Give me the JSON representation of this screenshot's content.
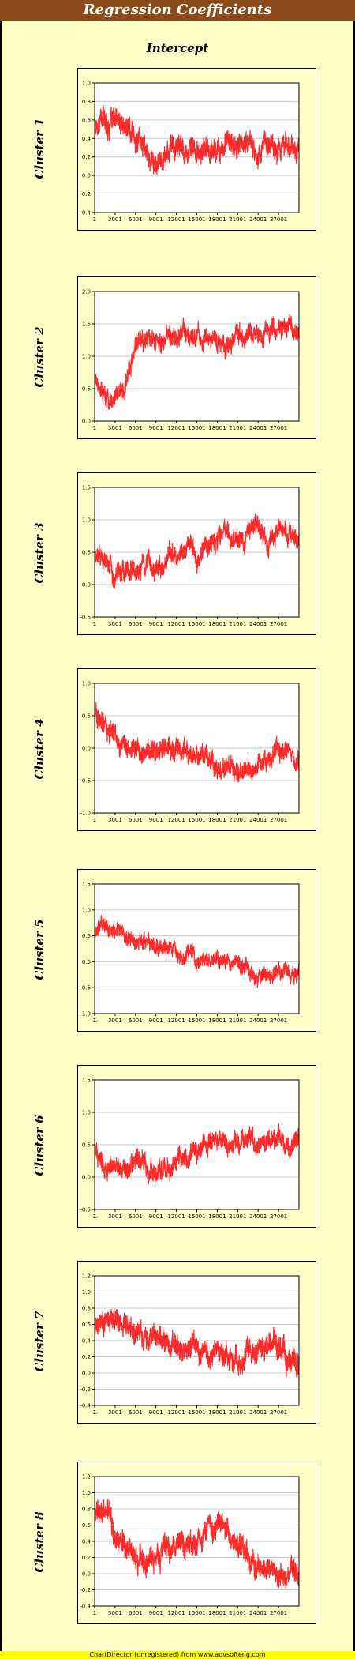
{
  "header": {
    "title": "Regression Coefficients"
  },
  "subtitle": "Intercept",
  "footer": "ChartDirector (unregistered) from www.advsofteng.com",
  "colors": {
    "line": "#ff2a2a",
    "background": "#ffffc8",
    "title_bar": "#8a4a1a",
    "footer_bar": "#ffff00"
  },
  "chart_data": [
    {
      "type": "line",
      "title": "Cluster 1",
      "x_range": [
        1,
        30000
      ],
      "x_ticks": [
        "1",
        "3001",
        "6001",
        "9001",
        "12001",
        "15001",
        "18001",
        "21001",
        "24001",
        "27001"
      ],
      "ylim": [
        -0.4,
        1.0
      ],
      "y_ticks": [
        "-0.4",
        "-0.2",
        "0.0",
        "0.2",
        "0.4",
        "0.6",
        "0.8",
        "1.0"
      ],
      "grid": true,
      "series": [
        {
          "color": "#ff2a2a",
          "band": 0.12,
          "x": [
            1,
            1000,
            2000,
            3001,
            4500,
            6001,
            7500,
            9001,
            10500,
            12001,
            13500,
            15001,
            16500,
            18001,
            19500,
            21001,
            22500,
            24001,
            25500,
            27001,
            28500,
            30000
          ],
          "y": [
            0.55,
            0.65,
            0.55,
            0.58,
            0.5,
            0.42,
            0.3,
            0.12,
            0.25,
            0.3,
            0.28,
            0.22,
            0.3,
            0.28,
            0.35,
            0.3,
            0.38,
            0.25,
            0.35,
            0.32,
            0.35,
            0.3
          ]
        }
      ]
    },
    {
      "type": "line",
      "title": "Cluster 2",
      "x_range": [
        1,
        30000
      ],
      "x_ticks": [
        "1",
        "3001",
        "6001",
        "9001",
        "12001",
        "15001",
        "18001",
        "21001",
        "24001",
        "27001"
      ],
      "ylim": [
        0.0,
        2.0
      ],
      "y_ticks": [
        "0.0",
        "0.5",
        "1.0",
        "1.5",
        "2.0"
      ],
      "grid": true,
      "series": [
        {
          "color": "#ff2a2a",
          "band": 0.15,
          "x": [
            1,
            1000,
            2000,
            3001,
            4500,
            6001,
            7500,
            9001,
            10500,
            12001,
            13500,
            15001,
            16500,
            18001,
            19500,
            21001,
            22500,
            24001,
            25500,
            27001,
            28500,
            30000
          ],
          "y": [
            0.7,
            0.5,
            0.3,
            0.3,
            0.65,
            1.1,
            1.3,
            1.3,
            1.25,
            1.3,
            1.35,
            1.3,
            1.3,
            1.2,
            1.15,
            1.3,
            1.35,
            1.4,
            1.45,
            1.4,
            1.45,
            1.4
          ]
        }
      ]
    },
    {
      "type": "line",
      "title": "Cluster 3",
      "x_range": [
        1,
        30000
      ],
      "x_ticks": [
        "1",
        "3001",
        "6001",
        "9001",
        "12001",
        "15001",
        "18001",
        "21001",
        "24001",
        "27001"
      ],
      "ylim": [
        -0.5,
        1.5
      ],
      "y_ticks": [
        "-0.5",
        "0.0",
        "0.5",
        "1.0",
        "1.5"
      ],
      "grid": true,
      "series": [
        {
          "color": "#ff2a2a",
          "band": 0.15,
          "x": [
            1,
            1000,
            2000,
            3001,
            4500,
            6001,
            7500,
            9001,
            10500,
            12001,
            13500,
            15001,
            16500,
            18001,
            19500,
            21001,
            22500,
            24001,
            25500,
            27001,
            28500,
            30000
          ],
          "y": [
            0.4,
            0.45,
            0.3,
            0.15,
            0.15,
            0.2,
            0.3,
            0.25,
            0.4,
            0.5,
            0.55,
            0.4,
            0.6,
            0.75,
            0.8,
            0.65,
            0.8,
            1.0,
            0.65,
            0.85,
            0.8,
            0.75
          ]
        }
      ]
    },
    {
      "type": "line",
      "title": "Cluster 4",
      "x_range": [
        1,
        30000
      ],
      "x_ticks": [
        "1",
        "3001",
        "6001",
        "9001",
        "12001",
        "15001",
        "18001",
        "21001",
        "24001",
        "27001"
      ],
      "ylim": [
        -1.0,
        1.0
      ],
      "y_ticks": [
        "-1.0",
        "-0.5",
        "0.0",
        "0.5",
        "1.0"
      ],
      "grid": true,
      "series": [
        {
          "color": "#ff2a2a",
          "band": 0.15,
          "x": [
            1,
            1000,
            2000,
            3001,
            4500,
            6001,
            7500,
            9001,
            10500,
            12001,
            13500,
            15001,
            16500,
            18001,
            19500,
            21001,
            22500,
            24001,
            25500,
            27001,
            28500,
            30000
          ],
          "y": [
            0.55,
            0.35,
            0.25,
            0.2,
            0.1,
            0.05,
            0.0,
            0.0,
            0.0,
            -0.05,
            0.0,
            -0.1,
            -0.2,
            -0.25,
            -0.3,
            -0.4,
            -0.3,
            -0.25,
            -0.1,
            -0.1,
            -0.05,
            -0.2
          ]
        }
      ]
    },
    {
      "type": "line",
      "title": "Cluster 5",
      "x_range": [
        1,
        30000
      ],
      "x_ticks": [
        "1",
        "3001",
        "6001",
        "9001",
        "12001",
        "15001",
        "18001",
        "21001",
        "24001",
        "27001"
      ],
      "ylim": [
        -1.0,
        1.5
      ],
      "y_ticks": [
        "-1.0",
        "-0.5",
        "0.0",
        "0.5",
        "1.0",
        "1.5"
      ],
      "grid": true,
      "series": [
        {
          "color": "#ff2a2a",
          "band": 0.15,
          "x": [
            1,
            1000,
            2000,
            3001,
            4500,
            6001,
            7500,
            9001,
            10500,
            12001,
            13500,
            15001,
            16500,
            18001,
            19500,
            21001,
            22500,
            24001,
            25500,
            27001,
            28500,
            30000
          ],
          "y": [
            0.6,
            0.8,
            0.7,
            0.65,
            0.55,
            0.4,
            0.35,
            0.25,
            0.25,
            0.2,
            0.15,
            0.05,
            0.0,
            0.05,
            0.0,
            -0.05,
            -0.15,
            -0.35,
            -0.2,
            -0.25,
            -0.2,
            -0.15
          ]
        }
      ]
    },
    {
      "type": "line",
      "title": "Cluster 6",
      "x_range": [
        1,
        30000
      ],
      "x_ticks": [
        "1",
        "3001",
        "6001",
        "9001",
        "12001",
        "15001",
        "18001",
        "21001",
        "24001",
        "27001"
      ],
      "ylim": [
        -0.5,
        1.5
      ],
      "y_ticks": [
        "-0.5",
        "0.0",
        "0.5",
        "1.0",
        "1.5"
      ],
      "grid": true,
      "series": [
        {
          "color": "#ff2a2a",
          "band": 0.15,
          "x": [
            1,
            1000,
            2000,
            3001,
            4500,
            6001,
            7500,
            9001,
            10500,
            12001,
            13500,
            15001,
            16500,
            18001,
            19500,
            21001,
            22500,
            24001,
            25500,
            27001,
            28500,
            30000
          ],
          "y": [
            0.4,
            0.25,
            0.1,
            0.15,
            0.2,
            0.3,
            0.2,
            0.05,
            0.15,
            0.25,
            0.35,
            0.3,
            0.5,
            0.55,
            0.45,
            0.55,
            0.6,
            0.5,
            0.55,
            0.6,
            0.5,
            0.55
          ]
        }
      ]
    },
    {
      "type": "line",
      "title": "Cluster 7",
      "x_range": [
        1,
        30000
      ],
      "x_ticks": [
        "1",
        "3001",
        "6001",
        "9001",
        "12001",
        "15001",
        "18001",
        "21001",
        "24001",
        "27001"
      ],
      "ylim": [
        -0.4,
        1.2
      ],
      "y_ticks": [
        "-0.4",
        "-0.2",
        "0.0",
        "0.2",
        "0.4",
        "0.6",
        "0.8",
        "1.0",
        "1.2"
      ],
      "grid": true,
      "series": [
        {
          "color": "#ff2a2a",
          "band": 0.14,
          "x": [
            1,
            1000,
            2000,
            3001,
            4500,
            6001,
            7500,
            9001,
            10500,
            12001,
            13500,
            15001,
            16500,
            18001,
            19500,
            21001,
            22500,
            24001,
            25500,
            27001,
            28500,
            30000
          ],
          "y": [
            0.55,
            0.65,
            0.7,
            0.6,
            0.55,
            0.5,
            0.45,
            0.4,
            0.4,
            0.35,
            0.3,
            0.25,
            0.2,
            0.25,
            0.2,
            0.15,
            0.2,
            0.25,
            0.3,
            0.35,
            0.15,
            0.1
          ]
        }
      ]
    },
    {
      "type": "line",
      "title": "Cluster 8",
      "x_range": [
        1,
        30000
      ],
      "x_ticks": [
        "1",
        "3001",
        "6001",
        "9001",
        "12001",
        "15001",
        "18001",
        "21001",
        "24001",
        "27001"
      ],
      "ylim": [
        -0.4,
        1.2
      ],
      "y_ticks": [
        "-0.4",
        "-0.2",
        "0.0",
        "0.2",
        "0.4",
        "0.6",
        "0.8",
        "1.0",
        "1.2"
      ],
      "grid": true,
      "series": [
        {
          "color": "#ff2a2a",
          "band": 0.14,
          "x": [
            1,
            1000,
            2000,
            3001,
            4500,
            6001,
            7500,
            9001,
            10500,
            12001,
            13500,
            15001,
            16500,
            18001,
            19500,
            21001,
            22500,
            24001,
            25500,
            27001,
            28500,
            30000
          ],
          "y": [
            0.65,
            0.75,
            0.65,
            0.5,
            0.4,
            0.25,
            0.15,
            0.25,
            0.3,
            0.35,
            0.4,
            0.35,
            0.5,
            0.65,
            0.55,
            0.4,
            0.2,
            0.1,
            0.05,
            0.0,
            0.05,
            -0.05
          ]
        }
      ]
    }
  ]
}
